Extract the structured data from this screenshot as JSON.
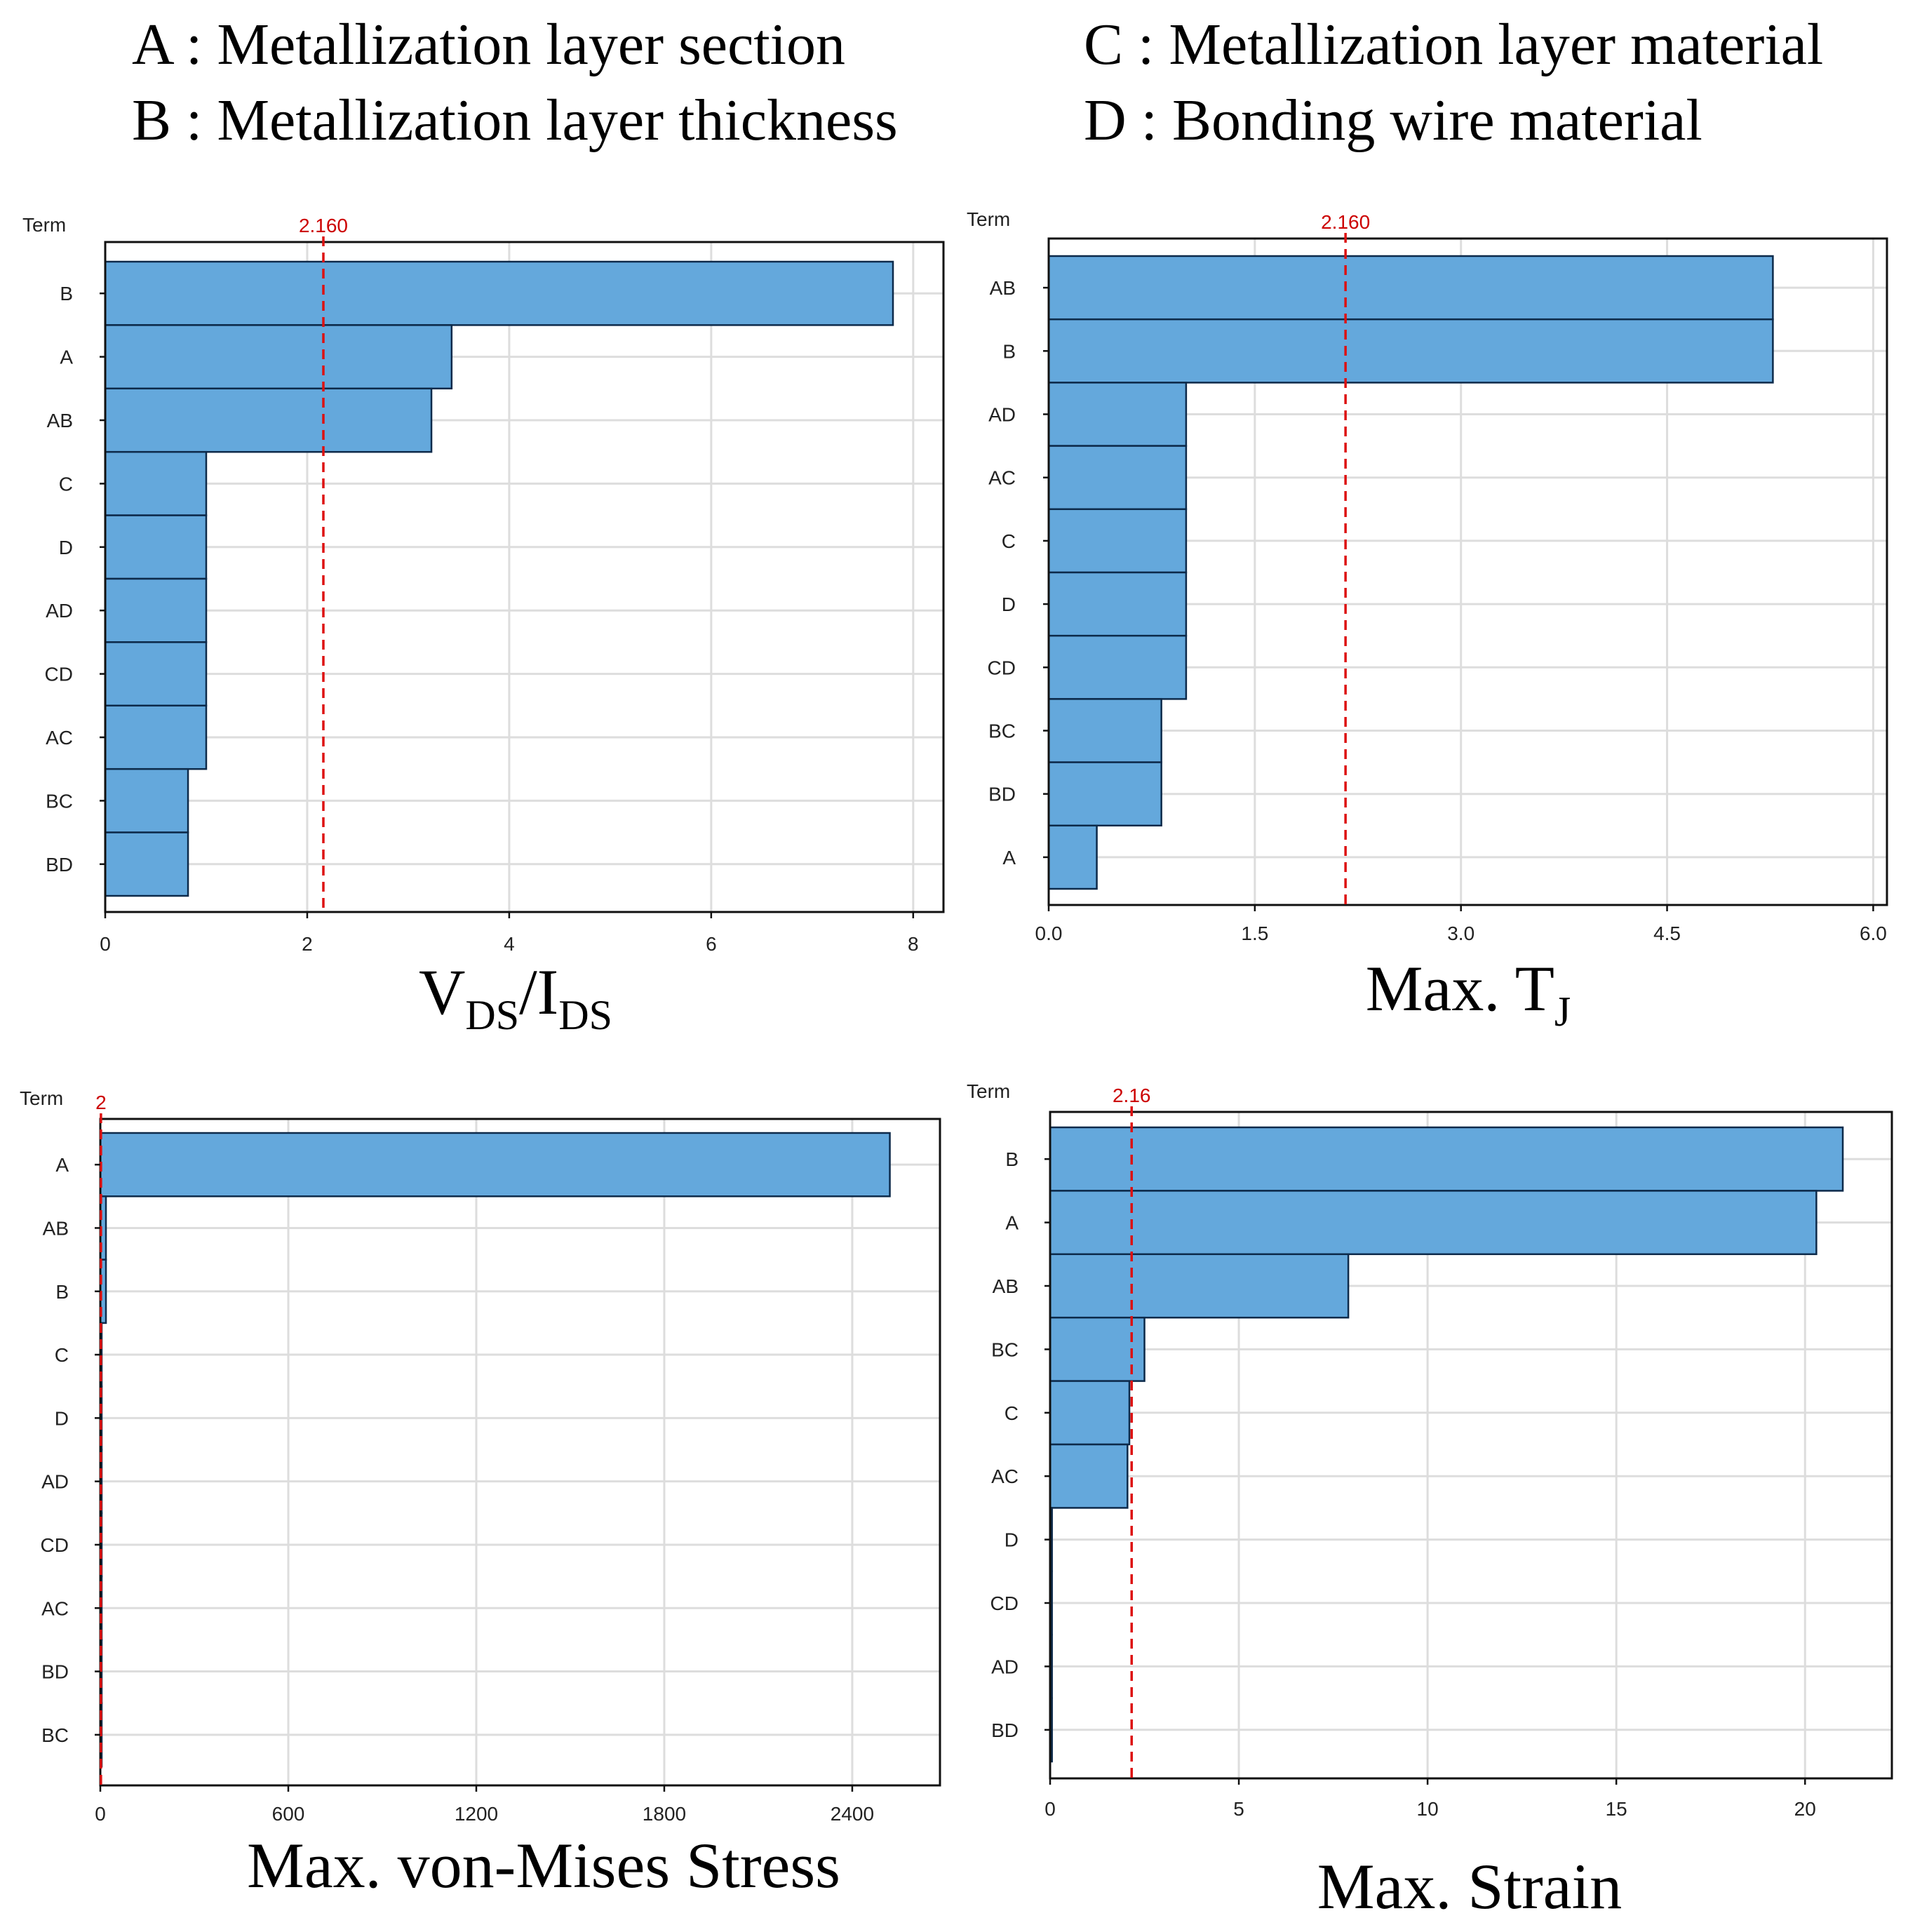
{
  "legend": {
    "a": "A : Metallization layer section",
    "b": "B : Metallization layer thickness",
    "c": "C : Metallization layer material",
    "d": "D : Bonding wire material"
  },
  "term_header": "Term",
  "colors": {
    "bar": "#64a8dc",
    "bar_edge": "#0d2a4a",
    "ref_line": "#dd1111",
    "grid": "#dddddd"
  },
  "chart_data": [
    {
      "type": "bar",
      "orientation": "horizontal",
      "title_parts": [
        "V",
        "DS",
        "/I",
        "DS"
      ],
      "categories": [
        "B",
        "A",
        "AB",
        "C",
        "D",
        "AD",
        "CD",
        "AC",
        "BC",
        "BD"
      ],
      "values": [
        7.8,
        3.43,
        3.23,
        1.0,
        1.0,
        1.0,
        1.0,
        1.0,
        0.82,
        0.82
      ],
      "xlim": [
        0,
        8.3
      ],
      "xticks": [
        0,
        2,
        4,
        6,
        8
      ],
      "xtick_labels": [
        "0",
        "2",
        "4",
        "6",
        "8"
      ],
      "reference": {
        "value": 2.16,
        "label": "2.160"
      },
      "grid": true
    },
    {
      "type": "bar",
      "orientation": "horizontal",
      "title_parts": [
        "Max. T",
        "J"
      ],
      "categories": [
        "AB",
        "B",
        "AD",
        "AC",
        "C",
        "D",
        "CD",
        "BC",
        "BD",
        "A"
      ],
      "values": [
        5.27,
        5.27,
        1.0,
        1.0,
        1.0,
        1.0,
        1.0,
        0.82,
        0.82,
        0.35
      ],
      "xlim": [
        0,
        6.1
      ],
      "xticks": [
        0,
        1.5,
        3,
        4.5,
        6
      ],
      "xtick_labels": [
        "0.0",
        "1.5",
        "3.0",
        "4.5",
        "6.0"
      ],
      "reference": {
        "value": 2.16,
        "label": "2.160"
      },
      "grid": true
    },
    {
      "type": "bar",
      "orientation": "horizontal",
      "title_parts": [
        "Max. von-Mises Stress"
      ],
      "categories": [
        "A",
        "AB",
        "B",
        "C",
        "D",
        "AD",
        "CD",
        "AC",
        "BD",
        "BC"
      ],
      "values": [
        2520,
        18,
        18,
        3,
        3,
        3,
        3,
        3,
        3,
        3
      ],
      "xlim": [
        0,
        2680
      ],
      "xticks": [
        0,
        600,
        1200,
        1800,
        2400
      ],
      "xtick_labels": [
        "0",
        "600",
        "1200",
        "1800",
        "2400"
      ],
      "reference": {
        "value": 2,
        "label": "2"
      },
      "grid": true
    },
    {
      "type": "bar",
      "orientation": "horizontal",
      "title_parts": [
        "Max. Strain"
      ],
      "categories": [
        "B",
        "A",
        "AB",
        "BC",
        "C",
        "AC",
        "D",
        "CD",
        "AD",
        "BD"
      ],
      "values": [
        21.0,
        20.3,
        7.9,
        2.5,
        2.1,
        2.05,
        0.05,
        0.05,
        0.05,
        0.05
      ],
      "xlim": [
        0,
        22.3
      ],
      "xticks": [
        0,
        5,
        10,
        15,
        20
      ],
      "xtick_labels": [
        "0",
        "5",
        "10",
        "15",
        "20"
      ],
      "reference": {
        "value": 2.16,
        "label": "2.16"
      },
      "grid": true
    }
  ]
}
